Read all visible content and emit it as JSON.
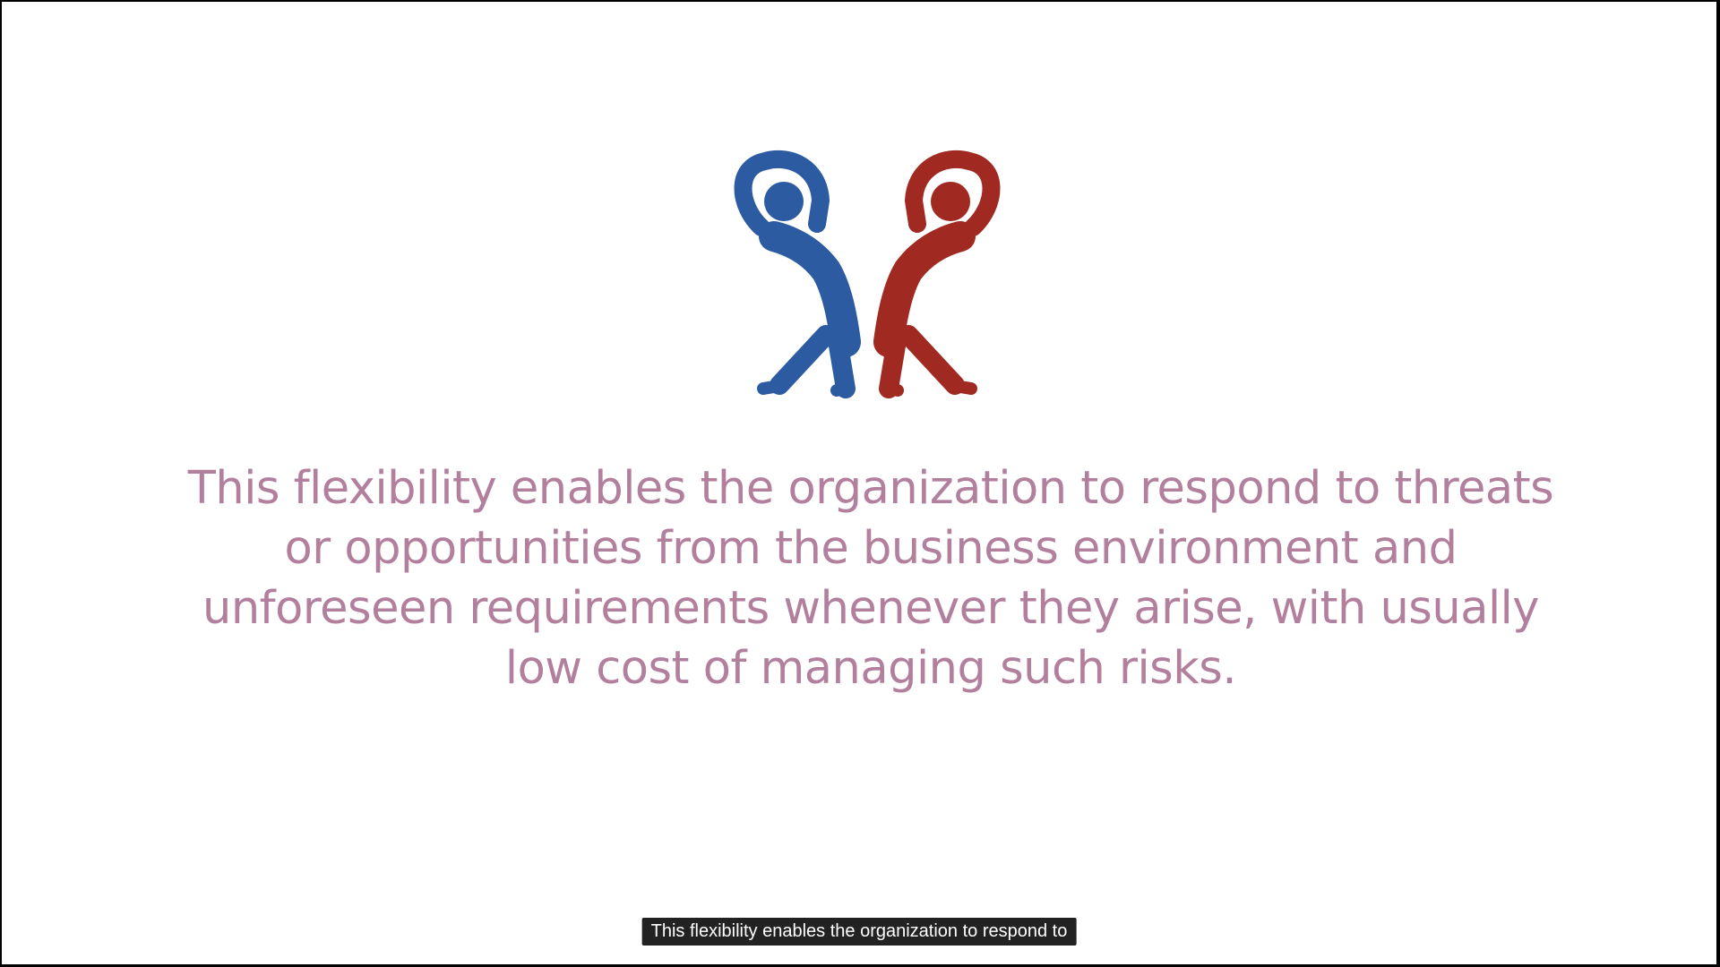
{
  "slide": {
    "illustration": "two-stretching-figures-icon",
    "colors": {
      "left_figure": "#2c5ba2",
      "right_figure": "#a02a22",
      "text": "#b27f9c",
      "background": "#ffffff"
    },
    "text_lines": [
      "This flexibility enables the organization to respond to threats",
      "or opportunities from the business environment and",
      "unforeseen requirements whenever they arise, with usually",
      "low cost of managing such risks."
    ]
  },
  "caption": {
    "text": "This flexibility enables the organization to respond to"
  }
}
